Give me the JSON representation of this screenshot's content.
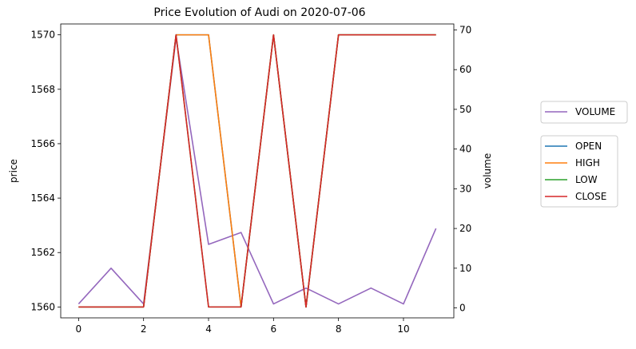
{
  "chart_data": {
    "type": "line",
    "title": "Price Evolution of Audi on 2020-07-06",
    "x": [
      0,
      1,
      2,
      3,
      4,
      5,
      6,
      7,
      8,
      9,
      10,
      11
    ],
    "x_ticks": [
      0,
      2,
      4,
      6,
      8,
      10
    ],
    "xlim": [
      -0.55,
      11.55
    ],
    "left_axis": {
      "label": "price",
      "ylim": [
        1559.6,
        1570.4
      ],
      "ticks": [
        1560,
        1562,
        1564,
        1566,
        1568,
        1570
      ]
    },
    "right_axis": {
      "label": "volume",
      "ylim": [
        -2.5,
        71.5
      ],
      "ticks": [
        0,
        10,
        20,
        30,
        40,
        50,
        60,
        70
      ]
    },
    "series": [
      {
        "name": "OPEN",
        "axis": "left",
        "color": "#1f77b4",
        "values": [
          1560,
          1560,
          1560,
          1570,
          1570,
          1560,
          1570,
          1560,
          1570,
          1570,
          1570,
          1570
        ]
      },
      {
        "name": "HIGH",
        "axis": "left",
        "color": "#ff7f0e",
        "values": [
          1560,
          1560,
          1560,
          1570,
          1570,
          1560,
          1570,
          1560,
          1570,
          1570,
          1570,
          1570
        ]
      },
      {
        "name": "LOW",
        "axis": "left",
        "color": "#2ca02c",
        "values": [
          1560,
          1560,
          1560,
          1570,
          1560,
          1560,
          1570,
          1560,
          1570,
          1570,
          1570,
          1570
        ]
      },
      {
        "name": "CLOSE",
        "axis": "left",
        "color": "#d62728",
        "values": [
          1560,
          1560,
          1560,
          1570,
          1560,
          1560,
          1570,
          1560,
          1570,
          1570,
          1570,
          1570
        ]
      },
      {
        "name": "VOLUME",
        "axis": "right",
        "color": "#9467bd",
        "values": [
          1,
          10,
          1,
          68,
          16,
          19,
          1,
          5,
          1,
          5,
          1,
          20
        ]
      }
    ],
    "legends": [
      {
        "position": "right-upper",
        "entries": [
          "VOLUME"
        ]
      },
      {
        "position": "right-middle",
        "entries": [
          "OPEN",
          "HIGH",
          "LOW",
          "CLOSE"
        ]
      }
    ]
  }
}
